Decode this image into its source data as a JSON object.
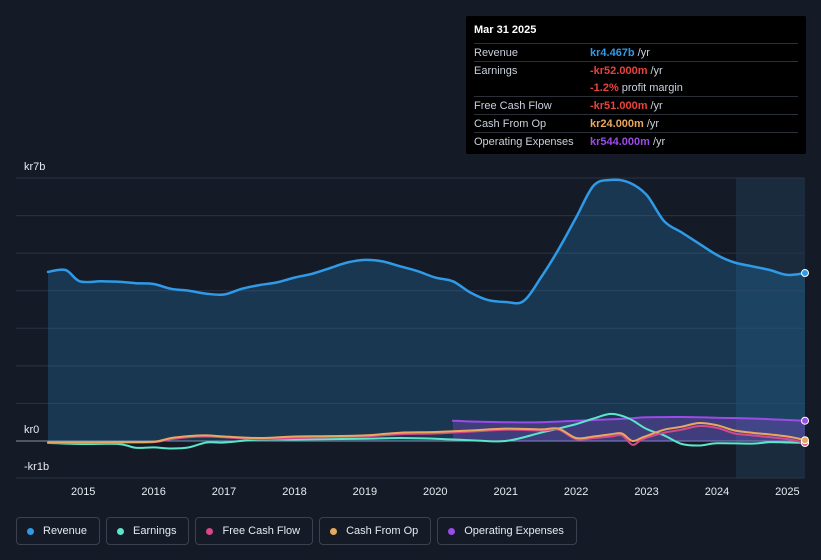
{
  "chart_data": {
    "type": "area",
    "currency_prefix": "kr",
    "y_unit": "b",
    "y_axis_labels": [
      "kr7b",
      "kr0",
      "-kr1b"
    ],
    "ylim": [
      -1,
      7
    ],
    "xlim": [
      2014.5,
      2025.25
    ],
    "x_ticks": [
      "2015",
      "2016",
      "2017",
      "2018",
      "2019",
      "2020",
      "2021",
      "2022",
      "2023",
      "2024",
      "2025"
    ],
    "forecast_shade_start": 2024.27,
    "series": [
      {
        "name": "Revenue",
        "color": "#2f9ae8",
        "fill": true,
        "x": [
          2014.5,
          2014.75,
          2014.95,
          2015.25,
          2015.5,
          2015.75,
          2016.0,
          2016.25,
          2016.5,
          2016.75,
          2017.0,
          2017.25,
          2017.5,
          2017.75,
          2018.0,
          2018.25,
          2018.5,
          2018.75,
          2019.0,
          2019.25,
          2019.5,
          2019.75,
          2020.0,
          2020.25,
          2020.5,
          2020.75,
          2021.0,
          2021.25,
          2021.5,
          2021.75,
          2022.0,
          2022.25,
          2022.5,
          2022.75,
          2023.0,
          2023.25,
          2023.5,
          2023.75,
          2024.0,
          2024.25,
          2024.5,
          2024.75,
          2025.0,
          2025.25
        ],
        "y": [
          4.5,
          4.55,
          4.25,
          4.25,
          4.24,
          4.2,
          4.18,
          4.05,
          4.0,
          3.92,
          3.9,
          4.05,
          4.15,
          4.22,
          4.35,
          4.45,
          4.6,
          4.75,
          4.82,
          4.78,
          4.65,
          4.52,
          4.35,
          4.25,
          3.95,
          3.75,
          3.7,
          3.72,
          4.35,
          5.1,
          5.95,
          6.8,
          6.95,
          6.88,
          6.55,
          5.85,
          5.55,
          5.25,
          4.95,
          4.75,
          4.65,
          4.55,
          4.42,
          4.47
        ]
      },
      {
        "name": "Earnings",
        "color": "#5ce6c9",
        "fill": false,
        "x": [
          2014.5,
          2015.0,
          2015.5,
          2015.75,
          2016.0,
          2016.25,
          2016.5,
          2016.75,
          2017.0,
          2017.5,
          2018.0,
          2018.5,
          2019.0,
          2019.5,
          2020.0,
          2020.5,
          2021.0,
          2021.5,
          2022.0,
          2022.25,
          2022.5,
          2022.75,
          2023.0,
          2023.25,
          2023.5,
          2023.75,
          2024.0,
          2024.5,
          2024.75,
          2025.0,
          2025.25
        ],
        "y": [
          -0.05,
          -0.08,
          -0.08,
          -0.18,
          -0.17,
          -0.2,
          -0.17,
          -0.04,
          -0.04,
          0.04,
          0.04,
          0.05,
          0.06,
          0.08,
          0.06,
          0.02,
          0.0,
          0.22,
          0.45,
          0.6,
          0.72,
          0.6,
          0.32,
          0.15,
          -0.08,
          -0.12,
          -0.06,
          -0.07,
          -0.03,
          -0.04,
          -0.05
        ]
      },
      {
        "name": "Free Cash Flow",
        "color": "#d6488a",
        "fill": false,
        "x": [
          2014.5,
          2015.0,
          2015.5,
          2016.0,
          2016.25,
          2016.5,
          2016.75,
          2017.0,
          2017.5,
          2018.0,
          2018.5,
          2019.0,
          2019.5,
          2020.0,
          2020.5,
          2021.0,
          2021.5,
          2021.75,
          2022.0,
          2022.25,
          2022.5,
          2022.65,
          2022.8,
          2022.95,
          2023.25,
          2023.5,
          2023.75,
          2024.0,
          2024.25,
          2024.5,
          2025.0,
          2025.25
        ],
        "y": [
          -0.05,
          -0.05,
          -0.04,
          -0.03,
          0.05,
          0.1,
          0.12,
          0.1,
          0.05,
          0.08,
          0.1,
          0.12,
          0.18,
          0.2,
          0.25,
          0.3,
          0.28,
          0.3,
          0.05,
          0.08,
          0.12,
          0.15,
          -0.1,
          0.05,
          0.22,
          0.3,
          0.4,
          0.35,
          0.2,
          0.15,
          0.05,
          -0.05
        ]
      },
      {
        "name": "Cash From Op",
        "color": "#e8a860",
        "fill": false,
        "x": [
          2014.5,
          2015.0,
          2015.5,
          2016.0,
          2016.25,
          2016.5,
          2016.75,
          2017.0,
          2017.5,
          2018.0,
          2018.5,
          2019.0,
          2019.5,
          2020.0,
          2020.5,
          2021.0,
          2021.5,
          2021.75,
          2022.0,
          2022.25,
          2022.5,
          2022.65,
          2022.8,
          2022.95,
          2023.25,
          2023.5,
          2023.75,
          2024.0,
          2024.25,
          2024.5,
          2025.0,
          2025.25
        ],
        "y": [
          -0.04,
          -0.04,
          -0.03,
          -0.02,
          0.08,
          0.13,
          0.15,
          0.12,
          0.08,
          0.12,
          0.13,
          0.15,
          0.22,
          0.24,
          0.28,
          0.33,
          0.31,
          0.33,
          0.08,
          0.12,
          0.18,
          0.2,
          0.0,
          0.1,
          0.3,
          0.38,
          0.48,
          0.42,
          0.28,
          0.22,
          0.12,
          0.02
        ]
      },
      {
        "name": "Operating Expenses",
        "color": "#9b4be6",
        "fill": true,
        "x": [
          2020.25,
          2020.5,
          2021.0,
          2021.5,
          2022.0,
          2022.5,
          2022.75,
          2023.0,
          2023.5,
          2024.0,
          2024.5,
          2025.0,
          2025.25
        ],
        "y": [
          0.54,
          0.52,
          0.5,
          0.5,
          0.54,
          0.58,
          0.6,
          0.63,
          0.64,
          0.62,
          0.6,
          0.56,
          0.54
        ]
      }
    ]
  },
  "tooltip": {
    "date": "Mar 31 2025",
    "rows": [
      {
        "label": "Revenue",
        "value": "kr4.467b",
        "unit": "/yr",
        "color": "#2f9ae8"
      },
      {
        "label": "Earnings",
        "value": "-kr52.000m",
        "unit": "/yr",
        "color": "#e8423c"
      },
      {
        "label": "",
        "value": "-1.2%",
        "unit": "profit margin",
        "color": "#e8423c"
      },
      {
        "label": "Free Cash Flow",
        "value": "-kr51.000m",
        "unit": "/yr",
        "color": "#e8423c"
      },
      {
        "label": "Cash From Op",
        "value": "kr24.000m",
        "unit": "/yr",
        "color": "#e8a860"
      },
      {
        "label": "Operating Expenses",
        "value": "kr544.000m",
        "unit": "/yr",
        "color": "#9b4be6"
      }
    ]
  },
  "legend": [
    {
      "label": "Revenue",
      "color": "#2f9ae8"
    },
    {
      "label": "Earnings",
      "color": "#5ce6c9"
    },
    {
      "label": "Free Cash Flow",
      "color": "#d6488a"
    },
    {
      "label": "Cash From Op",
      "color": "#e8a860"
    },
    {
      "label": "Operating Expenses",
      "color": "#9b4be6"
    }
  ]
}
